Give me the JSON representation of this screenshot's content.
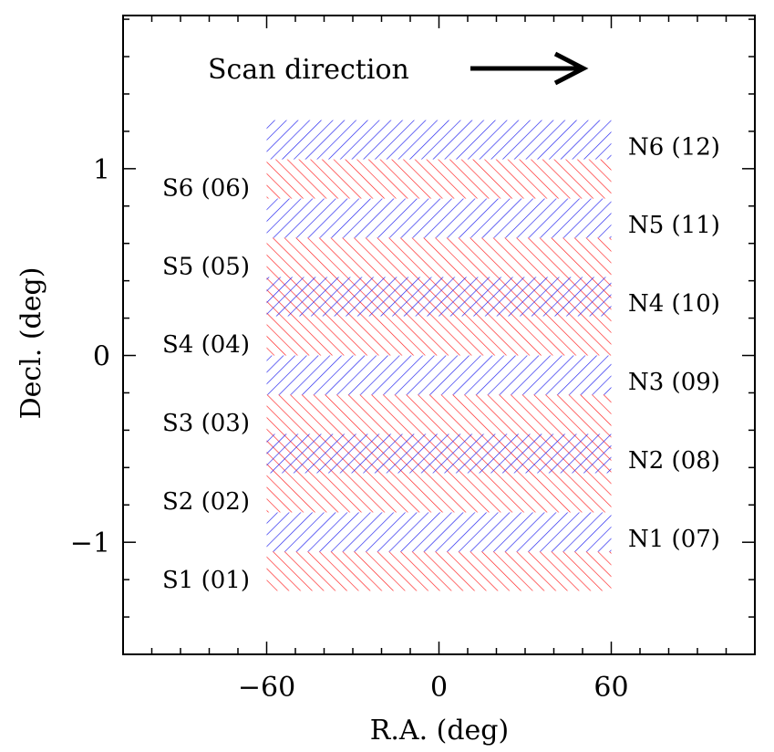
{
  "chart_data": {
    "type": "diagram",
    "annotation": "Scan direction",
    "xlabel": "R.A. (deg)",
    "ylabel": "Decl. (deg)",
    "xlim": [
      -110,
      110
    ],
    "ylim": [
      -1.6,
      1.82
    ],
    "x_ticks": [
      {
        "value": -60,
        "label": "−60"
      },
      {
        "value": 0,
        "label": "0"
      },
      {
        "value": 60,
        "label": "60"
      }
    ],
    "y_ticks": [
      {
        "value": 1,
        "label": "1"
      },
      {
        "value": 0,
        "label": "0"
      },
      {
        "value": -1,
        "label": "−1"
      }
    ],
    "x_minor_step": 10,
    "y_minor_step": 0.2,
    "field_ra_range": [
      -60,
      60
    ],
    "colors": {
      "south": "#ff2020",
      "north": "#2020ee"
    },
    "south_strips": [
      {
        "label": "S1 (01)",
        "dec": [
          -1.26,
          -1.05
        ]
      },
      {
        "label": "S2 (02)",
        "dec": [
          -0.84,
          -0.42
        ]
      },
      {
        "label": "S3 (03)",
        "dec": [
          -0.42,
          -0.21
        ]
      },
      {
        "label": "S4 (04)",
        "dec": [
          0.0,
          0.42
        ]
      },
      {
        "label": "S5 (05)",
        "dec": [
          0.42,
          0.63
        ]
      },
      {
        "label": "S6 (06)",
        "dec": [
          0.84,
          1.05
        ]
      }
    ],
    "north_strips": [
      {
        "label": "N1 (07)",
        "dec": [
          -1.05,
          -0.84
        ]
      },
      {
        "label": "N2 (08)",
        "dec": [
          -0.63,
          -0.42
        ]
      },
      {
        "label": "N3 (09)",
        "dec": [
          -0.21,
          0.0
        ]
      },
      {
        "label": "N4 (10)",
        "dec": [
          0.21,
          0.42
        ]
      },
      {
        "label": "N5 (11)",
        "dec": [
          0.63,
          0.84
        ]
      },
      {
        "label": "N6 (12)",
        "dec": [
          1.05,
          1.26
        ]
      }
    ],
    "south_labels": [
      {
        "text": "S1 (01)",
        "dec": -1.2
      },
      {
        "text": "S2 (02)",
        "dec": -0.78
      },
      {
        "text": "S3 (03)",
        "dec": -0.36
      },
      {
        "text": "S4 (04)",
        "dec": 0.06
      },
      {
        "text": "S5 (05)",
        "dec": 0.48
      },
      {
        "text": "S6 (06)",
        "dec": 0.9
      }
    ],
    "north_labels": [
      {
        "text": "N1 (07)",
        "dec": -0.98
      },
      {
        "text": "N2 (08)",
        "dec": -0.56
      },
      {
        "text": "N3 (09)",
        "dec": -0.14
      },
      {
        "text": "N4 (10)",
        "dec": 0.28
      },
      {
        "text": "N5 (11)",
        "dec": 0.7
      },
      {
        "text": "N6 (12)",
        "dec": 1.12
      }
    ]
  }
}
